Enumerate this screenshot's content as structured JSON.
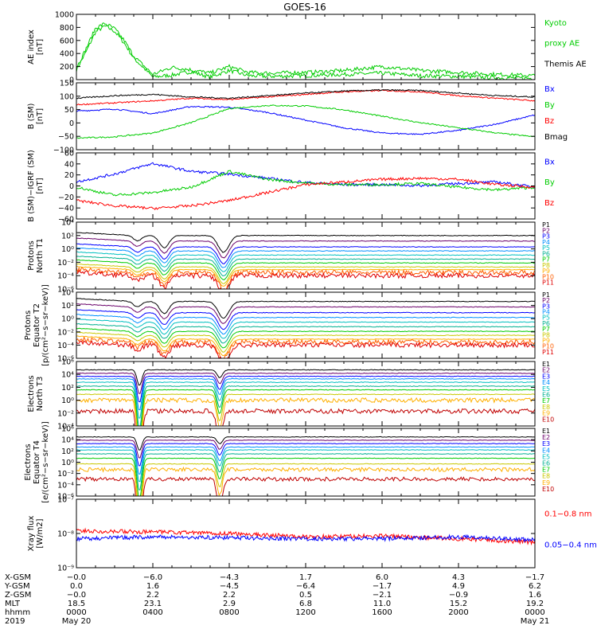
{
  "title": "GOES-16",
  "colors": {
    "black": "#000000",
    "green": "#00cc00",
    "blue": "#0000ff",
    "red": "#ff0000",
    "p_channels": [
      "#000000",
      "#6a006a",
      "#0000ff",
      "#0090ff",
      "#00c0c0",
      "#00b090",
      "#00cc00",
      "#c8c800",
      "#ffb000",
      "#ff6000",
      "#e00000"
    ],
    "e_channels": [
      "#000000",
      "#6a006a",
      "#0000ff",
      "#0090ff",
      "#00c0c0",
      "#00b090",
      "#00cc00",
      "#c8c800",
      "#ffb000",
      "#c00000"
    ]
  },
  "panels": [
    {
      "id": "ae",
      "ylabel_lines": [
        "AE index",
        "[nT]"
      ],
      "ticks": [
        "1000",
        "800",
        "600",
        "400",
        "200",
        "0"
      ],
      "legend": [
        {
          "text": "Kyoto",
          "color": "#00cc00"
        },
        {
          "text": "proxy AE",
          "color": "#00cc00"
        },
        {
          "text": "Themis AE",
          "color": "#000000"
        }
      ]
    },
    {
      "id": "bsm",
      "ylabel_lines": [
        "B (SM)",
        "[nT]"
      ],
      "ticks": [
        "150",
        "100",
        "50",
        "0",
        "−50",
        "−100"
      ],
      "legend": [
        {
          "text": "Bx",
          "color": "#0000ff"
        },
        {
          "text": "By",
          "color": "#00cc00"
        },
        {
          "text": "Bz",
          "color": "#ff0000"
        },
        {
          "text": "Bmag",
          "color": "#000000"
        }
      ]
    },
    {
      "id": "bigrf",
      "ylabel_lines": [
        "B (SM)−IGRF (SM)",
        "[nT]"
      ],
      "ticks": [
        "60",
        "40",
        "20",
        "0",
        "−20",
        "−40",
        "−60"
      ],
      "legend": [
        {
          "text": "Bx",
          "color": "#0000ff"
        },
        {
          "text": "By",
          "color": "#00cc00"
        },
        {
          "text": "Bz",
          "color": "#ff0000"
        }
      ]
    },
    {
      "id": "pt1",
      "ylabel_lines": [
        "Protons",
        "North T1"
      ],
      "ticks": [
        "10⁴",
        "10²",
        "10⁰",
        "10⁻²",
        "10⁻⁴",
        "10⁻⁶"
      ],
      "legend": [
        {
          "text": "P1"
        },
        {
          "text": "P2"
        },
        {
          "text": "P3"
        },
        {
          "text": "P4"
        },
        {
          "text": "P5"
        },
        {
          "text": "P6"
        },
        {
          "text": "P7"
        },
        {
          "text": "P8"
        },
        {
          "text": "P9"
        },
        {
          "text": "P10"
        },
        {
          "text": "P11"
        }
      ]
    },
    {
      "id": "pt2",
      "ylabel_lines": [
        "Protons",
        "Equator T2",
        "[p/(cm²−s−sr−keV)]"
      ],
      "ticks": [
        "10⁴",
        "10²",
        "10⁰",
        "10⁻²",
        "10⁻⁴",
        "10⁻⁶"
      ],
      "legend": [
        {
          "text": "P1"
        },
        {
          "text": "P2"
        },
        {
          "text": "P3"
        },
        {
          "text": "P4"
        },
        {
          "text": "P5"
        },
        {
          "text": "P6"
        },
        {
          "text": "P7"
        },
        {
          "text": "P8"
        },
        {
          "text": "P9"
        },
        {
          "text": "P10"
        },
        {
          "text": "P11"
        }
      ]
    },
    {
      "id": "et3",
      "ylabel_lines": [
        "Electrons",
        "North T3"
      ],
      "ticks": [
        "10⁶",
        "10⁴",
        "10²",
        "10⁰",
        "10⁻²",
        "10⁻⁴"
      ],
      "legend": [
        {
          "text": "E1"
        },
        {
          "text": "E2"
        },
        {
          "text": "E3"
        },
        {
          "text": "E4"
        },
        {
          "text": "E5"
        },
        {
          "text": "E6"
        },
        {
          "text": "E7"
        },
        {
          "text": "E8"
        },
        {
          "text": "E9"
        },
        {
          "text": "E10"
        }
      ]
    },
    {
      "id": "et4",
      "ylabel_lines": [
        "Electrons",
        "Equator T4",
        "[e/(cm²−s−sr−keV)]"
      ],
      "ticks": [
        "10⁶",
        "10⁴",
        "10²",
        "10⁰",
        "10⁻²",
        "10⁻⁴",
        "10⁻⁶"
      ],
      "legend": [
        {
          "text": "E1"
        },
        {
          "text": "E2"
        },
        {
          "text": "E3"
        },
        {
          "text": "E4"
        },
        {
          "text": "E5"
        },
        {
          "text": "E6"
        },
        {
          "text": "E7"
        },
        {
          "text": "E8"
        },
        {
          "text": "E9"
        },
        {
          "text": "E10"
        }
      ]
    },
    {
      "id": "xray",
      "ylabel_lines": [
        "Xray flux",
        "[W/m2]"
      ],
      "ticks": [
        "10⁻⁷",
        "10⁻⁸",
        "10⁻⁹"
      ],
      "legend": [
        {
          "text": "0.1−0.8 nm",
          "color": "#ff0000"
        },
        {
          "text": "0.05−0.4 nm",
          "color": "#0000ff"
        }
      ]
    }
  ],
  "footer": {
    "row_labels": [
      "X-GSM",
      "Y-GSM",
      "Z-GSM",
      "MLT",
      "hhmm",
      "2019"
    ],
    "columns": [
      [
        "−0.0",
        "0.0",
        "−0.0",
        "18.5",
        "0000",
        "May 20"
      ],
      [
        "−6.0",
        "1.6",
        "2.2",
        "23.1",
        "0400",
        ""
      ],
      [
        "−4.3",
        "−4.5",
        "2.2",
        "2.9",
        "0800",
        ""
      ],
      [
        "1.7",
        "−6.4",
        "0.5",
        "6.8",
        "1200",
        ""
      ],
      [
        "6.0",
        "−1.7",
        "−2.1",
        "11.0",
        "1600",
        ""
      ],
      [
        "4.3",
        "4.9",
        "−0.9",
        "15.2",
        "2000",
        ""
      ],
      [
        "−1.7",
        "6.2",
        "1.6",
        "19.2",
        "0000",
        "May 21"
      ]
    ]
  },
  "chart_data": {
    "type": "line",
    "title": "GOES-16",
    "x": [
      "0000",
      "0400",
      "0800",
      "1200",
      "1600",
      "2000",
      "0000"
    ],
    "panels": [
      {
        "name": "AE index",
        "ylim": [
          0,
          1000
        ],
        "series": [
          {
            "name": "Kyoto proxy AE",
            "x": [
              0,
              0.5,
              1,
              1.5,
              2,
              2.5,
              3,
              4,
              5,
              6,
              7,
              8,
              9,
              10,
              12,
              14,
              16,
              18,
              20,
              22,
              24
            ],
            "y": [
              150,
              420,
              730,
              820,
              740,
              560,
              330,
              40,
              70,
              120,
              40,
              140,
              60,
              50,
              60,
              80,
              100,
              60,
              50,
              30,
              20
            ]
          },
          {
            "name": "Themis AE",
            "x": [
              0,
              0.5,
              1,
              1.5,
              2,
              2.5,
              3,
              4,
              5,
              6,
              7,
              8,
              9,
              10,
              12,
              14,
              16,
              18,
              20,
              22,
              24
            ],
            "y": [
              180,
              470,
              790,
              860,
              780,
              600,
              360,
              80,
              190,
              150,
              100,
              200,
              110,
              100,
              110,
              140,
              200,
              140,
              110,
              80,
              60
            ]
          }
        ]
      },
      {
        "name": "B (SM)",
        "ylim": [
          -110,
          150
        ],
        "series": [
          {
            "name": "Bx",
            "x": [
              0,
              2,
              4,
              6,
              8,
              10,
              12,
              14,
              16,
              18,
              20,
              22,
              24
            ],
            "y": [
              40,
              48,
              30,
              58,
              55,
              35,
              5,
              -25,
              -45,
              -50,
              -35,
              -10,
              25
            ]
          },
          {
            "name": "By",
            "x": [
              0,
              2,
              4,
              6,
              8,
              10,
              12,
              14,
              16,
              18,
              20,
              22,
              24
            ],
            "y": [
              -65,
              -60,
              -45,
              -5,
              50,
              62,
              60,
              45,
              20,
              -5,
              -25,
              -45,
              -60
            ]
          },
          {
            "name": "Bz",
            "x": [
              0,
              2,
              4,
              6,
              8,
              10,
              12,
              14,
              16,
              18,
              20,
              22,
              24
            ],
            "y": [
              65,
              72,
              80,
              90,
              85,
              95,
              105,
              115,
              120,
              115,
              100,
              90,
              80
            ]
          },
          {
            "name": "Bmag",
            "x": [
              0,
              2,
              4,
              6,
              8,
              10,
              12,
              14,
              16,
              18,
              20,
              22,
              24
            ],
            "y": [
              90,
              100,
              105,
              95,
              90,
              100,
              110,
              118,
              122,
              120,
              110,
              100,
              95
            ]
          }
        ]
      },
      {
        "name": "B (SM)-IGRF (SM)",
        "ylim": [
          -65,
          60
        ],
        "series": [
          {
            "name": "Bx",
            "x": [
              0,
              2,
              4,
              6,
              8,
              10,
              12,
              14,
              16,
              18,
              20,
              22,
              24
            ],
            "y": [
              5,
              20,
              40,
              25,
              20,
              12,
              4,
              0,
              0,
              -2,
              2,
              5,
              -5
            ]
          },
          {
            "name": "By",
            "x": [
              0,
              2,
              4,
              6,
              8,
              10,
              12,
              14,
              16,
              18,
              20,
              22,
              24
            ],
            "y": [
              -5,
              -20,
              -15,
              -5,
              25,
              10,
              3,
              0,
              0,
              2,
              -5,
              -10,
              -5
            ]
          },
          {
            "name": "Bz",
            "x": [
              0,
              2,
              4,
              6,
              8,
              10,
              12,
              14,
              16,
              18,
              20,
              22,
              24
            ],
            "y": [
              -30,
              -40,
              -45,
              -40,
              -30,
              -15,
              0,
              5,
              10,
              12,
              10,
              0,
              -5
            ]
          }
        ]
      },
      {
        "name": "Protons North T1",
        "scale": "log",
        "ylim": [
          1e-06,
          10000.0
        ],
        "levels": [
          100,
          15,
          2,
          0.5,
          0.12,
          0.03,
          0.008,
          0.002,
          0.0008,
          0.0003,
          0.0001
        ]
      },
      {
        "name": "Protons Equator T2",
        "scale": "log",
        "ylim": [
          1e-06,
          10000.0
        ],
        "levels": [
          400,
          60,
          8,
          1.5,
          0.3,
          0.06,
          0.012,
          0.003,
          0.0008,
          0.0003,
          0.0001
        ]
      },
      {
        "name": "Electrons North T3",
        "scale": "log",
        "ylim": [
          0.0001,
          1000000.0
        ],
        "levels": [
          50000,
          15000,
          5000,
          2000,
          600,
          150,
          40,
          8,
          1,
          0.02
        ]
      },
      {
        "name": "Electrons Equator T4",
        "scale": "log",
        "ylim": [
          1e-06,
          1000000.0
        ],
        "levels": [
          30000,
          8000,
          2000,
          500,
          150,
          30,
          5,
          0.5,
          0.05,
          0.001
        ]
      },
      {
        "name": "Xray flux",
        "scale": "log",
        "ylim": [
          1e-09,
          1e-07
        ],
        "series": [
          {
            "name": "0.1-0.8 nm",
            "x": [
              0,
              4,
              8,
              12,
              16,
              20,
              24
            ],
            "y": [
              1.2e-08,
              1.1e-08,
              1e-08,
              8e-09,
              8.5e-09,
              7e-09,
              5.5e-09
            ]
          },
          {
            "name": "0.05-0.4 nm",
            "x": [
              0,
              4,
              8,
              12,
              16,
              20,
              24
            ],
            "y": [
              7e-09,
              8e-09,
              7.5e-09,
              7e-09,
              7e-09,
              8e-09,
              6.5e-09
            ]
          }
        ]
      }
    ]
  }
}
